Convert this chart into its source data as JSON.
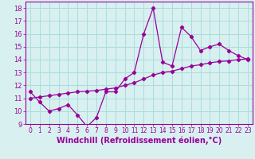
{
  "x": [
    0,
    1,
    2,
    3,
    4,
    5,
    6,
    7,
    8,
    9,
    10,
    11,
    12,
    13,
    14,
    15,
    16,
    17,
    18,
    19,
    20,
    21,
    22,
    23
  ],
  "y_spiky": [
    11.5,
    10.7,
    10.0,
    10.2,
    10.5,
    9.7,
    8.8,
    9.5,
    11.5,
    11.5,
    12.5,
    13.0,
    16.0,
    18.0,
    13.8,
    13.5,
    16.5,
    15.8,
    14.7,
    15.0,
    15.2,
    14.7,
    14.3,
    14.0
  ],
  "y_smooth": [
    11.0,
    11.1,
    11.2,
    11.3,
    11.4,
    11.5,
    11.55,
    11.6,
    11.7,
    11.8,
    12.0,
    12.2,
    12.5,
    12.8,
    13.0,
    13.1,
    13.3,
    13.5,
    13.6,
    13.75,
    13.85,
    13.9,
    14.0,
    14.05
  ],
  "line_color": "#990099",
  "bg_color": "#d8f0f0",
  "grid_color": "#aadddd",
  "xlabel": "Windchill (Refroidissement éolien,°C)",
  "xlim": [
    -0.5,
    23.5
  ],
  "ylim": [
    9,
    18.5
  ],
  "yticks": [
    9,
    10,
    11,
    12,
    13,
    14,
    15,
    16,
    17,
    18
  ],
  "xticks": [
    0,
    1,
    2,
    3,
    4,
    5,
    6,
    7,
    8,
    9,
    10,
    11,
    12,
    13,
    14,
    15,
    16,
    17,
    18,
    19,
    20,
    21,
    22,
    23
  ],
  "tick_label_size": 5.5,
  "xlabel_size": 7
}
